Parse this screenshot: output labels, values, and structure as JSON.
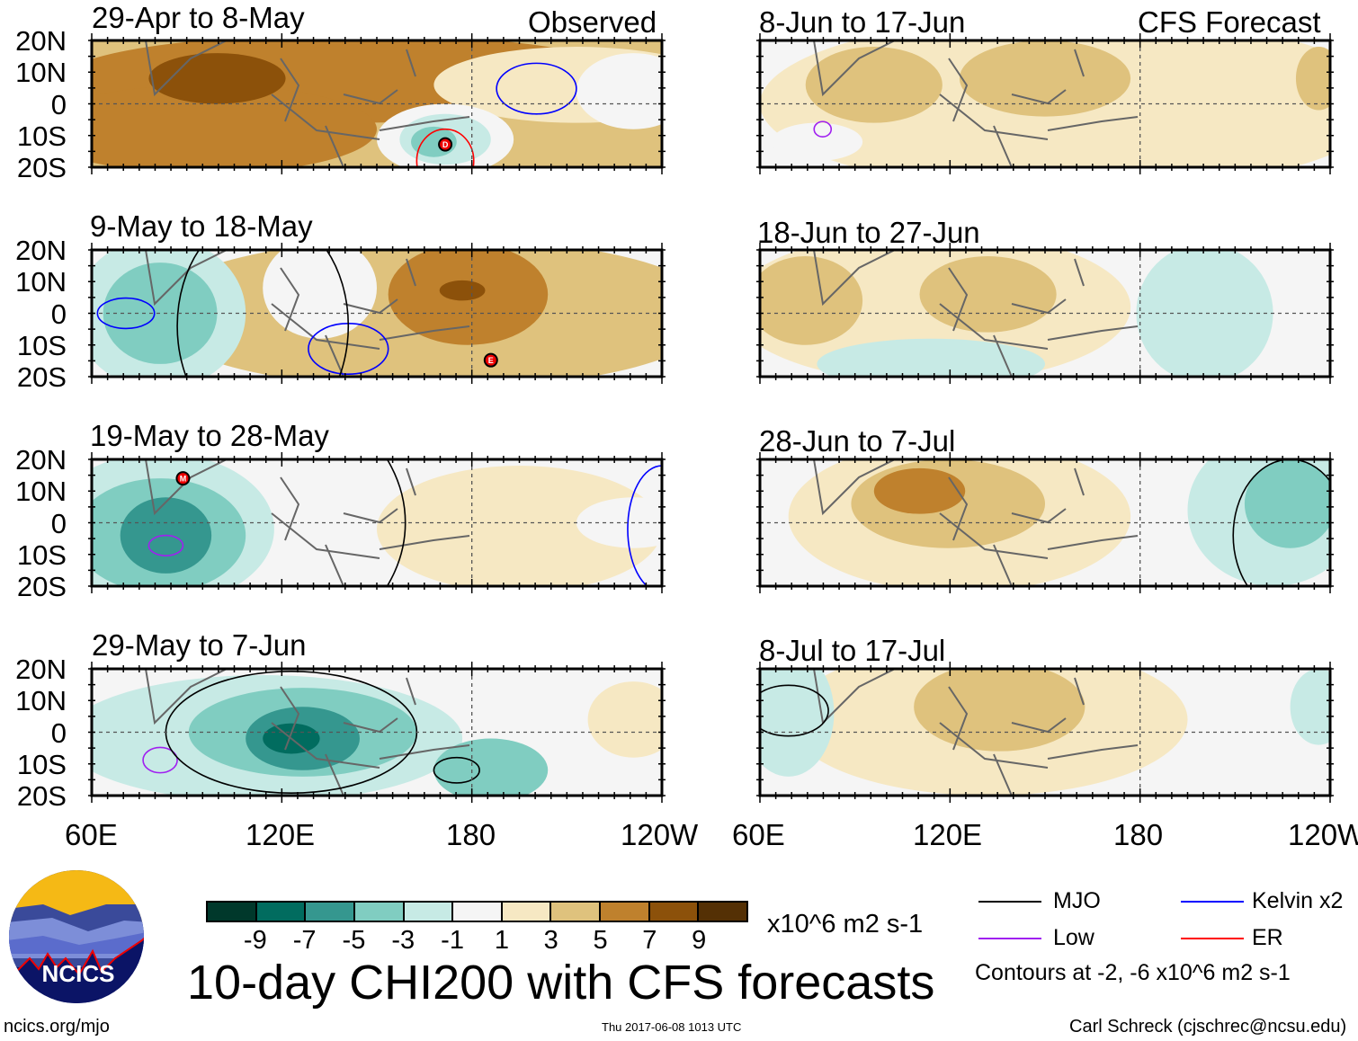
{
  "header": {
    "observed": "Observed",
    "forecast": "CFS Forecast"
  },
  "panels": {
    "left": [
      {
        "title": "29-Apr to 8-May",
        "storms": [
          "D"
        ]
      },
      {
        "title": "9-May to 18-May",
        "storms": [
          "E"
        ]
      },
      {
        "title": "19-May to 28-May",
        "storms": [
          "M"
        ]
      },
      {
        "title": "29-May to 7-Jun",
        "storms": []
      }
    ],
    "right": [
      {
        "title": "8-Jun to 17-Jun"
      },
      {
        "title": "18-Jun to 27-Jun"
      },
      {
        "title": "28-Jun to 7-Jul"
      },
      {
        "title": "8-Jul to 17-Jul"
      }
    ]
  },
  "lat_labels": [
    "20N",
    "10N",
    "0",
    "10S",
    "20S"
  ],
  "lon_labels": [
    "60E",
    "120E",
    "180",
    "120W"
  ],
  "colorbar": {
    "ticks": [
      "-9",
      "-7",
      "-5",
      "-3",
      "-1",
      "1",
      "3",
      "5",
      "7",
      "9"
    ],
    "colors": [
      "#00382b",
      "#016c5f",
      "#35978f",
      "#80cdc1",
      "#c7eae5",
      "#f5f5f5",
      "#f6e8c3",
      "#dfc27d",
      "#bf812d",
      "#8c510a",
      "#543005"
    ],
    "units": "x10^6 m2 s-1"
  },
  "title": "10-day CHI200 with CFS forecasts",
  "legend": {
    "items": [
      {
        "label": "MJO",
        "color": "#000000"
      },
      {
        "label": "Kelvin x2",
        "color": "#0000ff"
      },
      {
        "label": "Low",
        "color": "#a020f0"
      },
      {
        "label": "ER",
        "color": "#ff0000"
      }
    ],
    "note": "Contours at -2, -6 x10^6 m2 s-1"
  },
  "logo": {
    "text": "NCICS"
  },
  "footer": {
    "url": "ncics.org/mjo",
    "timestamp": "Thu 2017-06-08 1013 UTC",
    "author": "Carl Schreck (cjschrec@ncsu.edu)"
  }
}
